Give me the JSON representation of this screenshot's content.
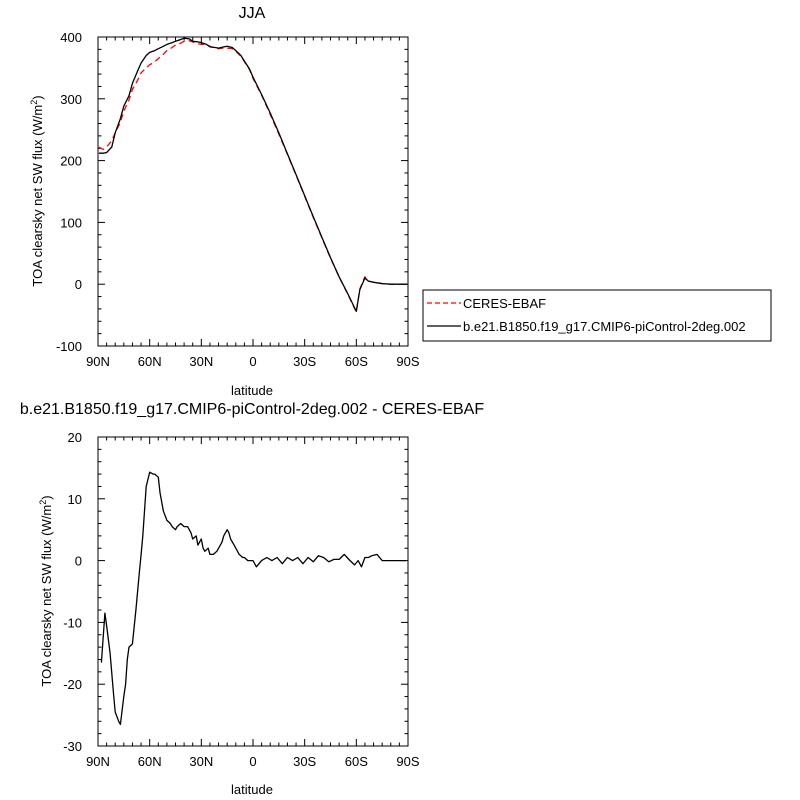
{
  "chart_data": [
    {
      "type": "line",
      "title": "JJA",
      "xlabel": "latitude",
      "ylabel": "TOA clearsky net SW flux (W/m",
      "ylabel_sup": "2",
      "ylabel_close": ")",
      "xlim": [
        90,
        -90
      ],
      "ylim": [
        -100,
        400
      ],
      "x_ticks": [
        90,
        60,
        30,
        0,
        -30,
        -60,
        -90
      ],
      "x_tick_labels": [
        "90N",
        "60N",
        "30N",
        "0",
        "30S",
        "60S",
        "90S"
      ],
      "y_ticks": [
        -100,
        0,
        100,
        200,
        300,
        400
      ],
      "y_tick_labels": [
        "-100",
        "0",
        "100",
        "200",
        "300",
        "400"
      ],
      "grid": false,
      "legend": "right",
      "series": [
        {
          "name": "CERES-EBAF",
          "color": "#ff0000",
          "dash": "dashed",
          "x": [
            89.5,
            87,
            85,
            82,
            80,
            77,
            75,
            72,
            70,
            67,
            65,
            62,
            60,
            57,
            55,
            52,
            50,
            47,
            45,
            42,
            40,
            37,
            35,
            32,
            30,
            27,
            25,
            22,
            20,
            17,
            15,
            12,
            10,
            7,
            5,
            2,
            0,
            -5,
            -10,
            -15,
            -20,
            -25,
            -30,
            -35,
            -40,
            -45,
            -50,
            -55,
            -60,
            -62,
            -65,
            -67,
            -70,
            -75,
            -80,
            -85,
            -89.5
          ],
          "y": [
            222,
            218,
            222,
            232,
            245,
            262,
            280,
            298,
            315,
            330,
            342,
            350,
            355,
            360,
            365,
            372,
            378,
            383,
            387,
            390,
            393,
            394,
            392,
            389,
            388,
            388,
            385,
            382,
            381,
            382,
            382,
            381,
            377,
            369,
            360,
            347,
            333,
            306,
            275,
            243,
            210,
            176,
            142,
            108,
            75,
            42,
            12,
            -16,
            -45,
            -8,
            12,
            5,
            3,
            1,
            0,
            0,
            0
          ]
        },
        {
          "name": "b.e21.B1850.f19_g17.CMIP6-piControl-2deg.002",
          "color": "#000000",
          "dash": "solid",
          "x": [
            89.5,
            87,
            85,
            82,
            80,
            77,
            75,
            72,
            70,
            67,
            65,
            62,
            60,
            57,
            55,
            52,
            50,
            47,
            45,
            42,
            40,
            37,
            35,
            32,
            30,
            27,
            25,
            22,
            20,
            17,
            15,
            12,
            10,
            7,
            5,
            2,
            0,
            -5,
            -10,
            -15,
            -20,
            -25,
            -30,
            -35,
            -40,
            -45,
            -50,
            -55,
            -60,
            -62,
            -65,
            -67,
            -70,
            -75,
            -80,
            -85,
            -89.5
          ],
          "y": [
            212,
            212,
            213,
            222,
            245,
            268,
            288,
            305,
            325,
            345,
            358,
            370,
            375,
            378,
            381,
            385,
            388,
            391,
            393,
            396,
            398,
            397,
            393,
            392,
            391,
            388,
            384,
            383,
            382,
            384,
            385,
            383,
            378,
            370,
            361,
            348,
            335,
            307,
            277,
            245,
            211,
            177,
            143,
            109,
            76,
            43,
            12,
            -15,
            -44,
            -9,
            10,
            5,
            3,
            1,
            0,
            0,
            0
          ]
        }
      ]
    },
    {
      "type": "line",
      "title": "b.e21.B1850.f19_g17.CMIP6-piControl-2deg.002 - CERES-EBAF",
      "xlabel": "latitude",
      "ylabel": "TOA clearsky net SW flux (W/m",
      "ylabel_sup": "2",
      "ylabel_close": ")",
      "xlim": [
        90,
        -90
      ],
      "ylim": [
        -30,
        20
      ],
      "x_ticks": [
        90,
        60,
        30,
        0,
        -30,
        -60,
        -90
      ],
      "x_tick_labels": [
        "90N",
        "60N",
        "30N",
        "0",
        "30S",
        "60S",
        "90S"
      ],
      "y_ticks": [
        -30,
        -20,
        -10,
        0,
        10,
        20
      ],
      "y_tick_labels": [
        "-30",
        "-20",
        "-10",
        "0",
        "10",
        "20"
      ],
      "grid": false,
      "series": [
        {
          "color": "#000000",
          "dash": "solid",
          "x": [
            88,
            86,
            85,
            83,
            81,
            80,
            78,
            77,
            75,
            74,
            73,
            72,
            70,
            68,
            66,
            65,
            64,
            62,
            60,
            58,
            57,
            55,
            54,
            52,
            50,
            48,
            47,
            45,
            44,
            42,
            40,
            38,
            36,
            35,
            33,
            32,
            30,
            29,
            28,
            26,
            25,
            23,
            21,
            20,
            18,
            17,
            15,
            14,
            13,
            11,
            10,
            8,
            6,
            5,
            3,
            0,
            -2,
            -5,
            -8,
            -11,
            -14,
            -17,
            -20,
            -23,
            -26,
            -29,
            -32,
            -35,
            -38,
            -41,
            -44,
            -47,
            -50,
            -53,
            -56,
            -59,
            -61,
            -63,
            -65,
            -67,
            -69,
            -72,
            -75,
            -77,
            -80,
            -83,
            -86,
            -89
          ],
          "y": [
            -16.5,
            -8.5,
            -10.5,
            -15,
            -21.5,
            -24.5,
            -26,
            -26.5,
            -22,
            -20,
            -16,
            -14,
            -13.5,
            -8,
            -2,
            1,
            4,
            12,
            14.3,
            14,
            14,
            13.5,
            11,
            8,
            6.5,
            6,
            5.5,
            5,
            5.5,
            6,
            5.5,
            5.5,
            4.5,
            3.5,
            4,
            2.5,
            3.5,
            2,
            1.5,
            2,
            1,
            1,
            1.5,
            2,
            3,
            4,
            5,
            4.5,
            3.5,
            2.5,
            2,
            1,
            0.5,
            0.5,
            0,
            0,
            -1,
            0,
            0.5,
            0,
            0.5,
            -0.5,
            0.5,
            0,
            0.5,
            -0.5,
            0.5,
            -0.2,
            0.8,
            0.5,
            -0.2,
            0.2,
            0.2,
            1,
            0.1,
            -0.7,
            0,
            -1,
            0.5,
            0.5,
            0.8,
            1,
            0,
            0,
            0,
            0,
            0,
            0
          ]
        }
      ]
    }
  ]
}
